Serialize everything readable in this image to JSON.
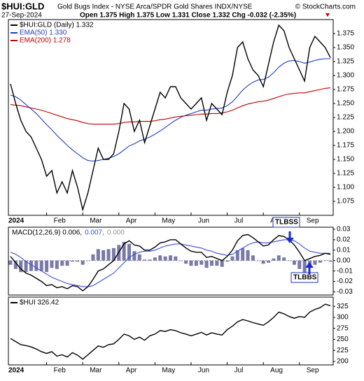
{
  "chart_data": [
    {
      "type": "line",
      "title": "$HUI:GLD",
      "subtitle": "Gold Bugs Index - NYSE Arca/SPDR Gold Shares INDX/NYSE",
      "source": "© StockCharts.com",
      "date": "27-Sep-2024",
      "quote": "Open 1.375 High 1.375 Low 1.331 Close 1.332 Chg -0.032 (-2.35%)",
      "categories": [
        "2024",
        null,
        null,
        null,
        null,
        null,
        null,
        "Feb",
        null,
        null,
        null,
        null,
        null,
        null,
        "Mar",
        null,
        null,
        null,
        null,
        null,
        null,
        "Apr",
        null,
        null,
        null,
        null,
        null,
        null,
        "May",
        null,
        null,
        null,
        null,
        null,
        null,
        "Jun",
        null,
        null,
        null,
        null,
        null,
        null,
        "Jul",
        null,
        null,
        null,
        null,
        null,
        null,
        "Aug",
        null,
        null,
        null,
        null,
        null,
        null,
        "Sep",
        null,
        null,
        null,
        null,
        null,
        null
      ],
      "ylim": [
        1.05,
        1.4
      ],
      "yticks": [
        1.075,
        {
          "value": 1.1,
          "label": "1.100"
        },
        1.125,
        {
          "value": 1.15,
          "label": "1.150"
        },
        1.175,
        {
          "value": 1.2,
          "label": "1.200"
        },
        1.225,
        {
          "value": 1.25,
          "label": "1.250"
        },
        1.275,
        {
          "value": 1.3,
          "label": "1.300"
        },
        1.325,
        {
          "value": 1.35,
          "label": "1.350"
        },
        1.375
      ],
      "series": [
        {
          "name": "$HUI:GLD (Daily) 1.332",
          "color": "#000000",
          "values": [
            1.285,
            1.25,
            1.22,
            1.2,
            1.19,
            1.17,
            1.15,
            1.12,
            1.13,
            1.09,
            1.11,
            1.09,
            1.13,
            1.1,
            1.06,
            1.09,
            1.13,
            1.17,
            1.15,
            1.15,
            1.16,
            1.2,
            1.25,
            1.24,
            1.2,
            1.22,
            1.18,
            1.21,
            1.24,
            1.27,
            1.26,
            1.28,
            1.28,
            1.26,
            1.25,
            1.24,
            1.25,
            1.26,
            1.22,
            1.25,
            1.24,
            1.23,
            1.27,
            1.3,
            1.35,
            1.36,
            1.33,
            1.31,
            1.3,
            1.28,
            1.32,
            1.36,
            1.39,
            1.38,
            1.35,
            1.33,
            1.31,
            1.29,
            1.35,
            1.37,
            1.36,
            1.35,
            1.332
          ]
        },
        {
          "name": "EMA(50) 1.330",
          "color": "#1f3fbf",
          "values": [
            1.265,
            1.262,
            1.256,
            1.248,
            1.24,
            1.232,
            1.222,
            1.212,
            1.203,
            1.193,
            1.184,
            1.175,
            1.167,
            1.16,
            1.153,
            1.148,
            1.147,
            1.148,
            1.15,
            1.152,
            1.155,
            1.16,
            1.167,
            1.174,
            1.178,
            1.183,
            1.186,
            1.19,
            1.195,
            1.201,
            1.207,
            1.214,
            1.22,
            1.225,
            1.229,
            1.232,
            1.235,
            1.238,
            1.238,
            1.24,
            1.241,
            1.242,
            1.246,
            1.253,
            1.263,
            1.274,
            1.282,
            1.288,
            1.292,
            1.293,
            1.297,
            1.305,
            1.315,
            1.322,
            1.326,
            1.327,
            1.325,
            1.322,
            1.324,
            1.327,
            1.329,
            1.33,
            1.33
          ]
        },
        {
          "name": "EMA(200) 1.278",
          "color": "#c00000",
          "values": [
            1.248,
            1.247,
            1.246,
            1.244,
            1.242,
            1.24,
            1.238,
            1.235,
            1.232,
            1.229,
            1.226,
            1.223,
            1.221,
            1.219,
            1.216,
            1.214,
            1.213,
            1.213,
            1.213,
            1.213,
            1.213,
            1.214,
            1.216,
            1.217,
            1.217,
            1.218,
            1.218,
            1.218,
            1.219,
            1.221,
            1.222,
            1.224,
            1.226,
            1.227,
            1.228,
            1.229,
            1.23,
            1.231,
            1.231,
            1.232,
            1.232,
            1.233,
            1.235,
            1.238,
            1.242,
            1.246,
            1.249,
            1.251,
            1.253,
            1.254,
            1.256,
            1.259,
            1.262,
            1.265,
            1.267,
            1.268,
            1.269,
            1.269,
            1.271,
            1.273,
            1.275,
            1.277,
            1.278
          ]
        }
      ]
    },
    {
      "type": "line",
      "ylim": [
        -0.033,
        0.032
      ],
      "yticks": [
        0.03,
        0.02,
        0.01,
        {
          "value": 0,
          "label": "0.00"
        },
        -0.01,
        -0.02,
        -0.03
      ],
      "annotations": [
        "TLBSS",
        "TLBBS"
      ],
      "series": [
        {
          "name": "MACD(12,26,9) 0.006,",
          "color": "#000000",
          "values": [
            0.004,
            -0.002,
            -0.008,
            -0.012,
            -0.014,
            -0.017,
            -0.02,
            -0.024,
            -0.023,
            -0.026,
            -0.025,
            -0.027,
            -0.024,
            -0.025,
            -0.029,
            -0.025,
            -0.018,
            -0.01,
            -0.008,
            -0.004,
            0.0,
            0.008,
            0.016,
            0.019,
            0.015,
            0.014,
            0.01,
            0.01,
            0.013,
            0.017,
            0.018,
            0.02,
            0.02,
            0.016,
            0.012,
            0.009,
            0.008,
            0.008,
            0.003,
            0.004,
            0.002,
            0.0,
            0.004,
            0.01,
            0.019,
            0.024,
            0.025,
            0.022,
            0.018,
            0.014,
            0.015,
            0.02,
            0.024,
            0.023,
            0.02,
            0.015,
            0.008,
            0.0,
            0.002,
            0.004,
            0.005,
            0.007,
            0.006
          ]
        },
        {
          "name": "0.007,",
          "color": "#3a50d8",
          "values": [
            0.008,
            0.006,
            0.003,
            -0.001,
            -0.004,
            -0.007,
            -0.01,
            -0.013,
            -0.016,
            -0.018,
            -0.02,
            -0.022,
            -0.023,
            -0.024,
            -0.025,
            -0.025,
            -0.024,
            -0.021,
            -0.018,
            -0.015,
            -0.012,
            -0.007,
            -0.002,
            0.003,
            0.006,
            0.008,
            0.009,
            0.009,
            0.01,
            0.012,
            0.014,
            0.015,
            0.016,
            0.016,
            0.015,
            0.014,
            0.013,
            0.012,
            0.01,
            0.009,
            0.007,
            0.006,
            0.005,
            0.006,
            0.009,
            0.012,
            0.015,
            0.017,
            0.018,
            0.017,
            0.017,
            0.018,
            0.019,
            0.02,
            0.02,
            0.019,
            0.016,
            0.012,
            0.009,
            0.008,
            0.007,
            0.007,
            0.007
          ]
        },
        {
          "name": "0.000",
          "type": "bar",
          "color": "#7a7aa8",
          "values": [
            -0.004,
            -0.008,
            -0.011,
            -0.011,
            -0.01,
            -0.01,
            -0.01,
            -0.011,
            -0.007,
            -0.008,
            -0.005,
            -0.005,
            -0.001,
            -0.001,
            -0.004,
            0.0,
            0.006,
            0.011,
            0.01,
            0.011,
            0.012,
            0.015,
            0.018,
            0.016,
            0.009,
            0.006,
            0.001,
            0.001,
            0.003,
            0.005,
            0.004,
            0.005,
            0.004,
            0.0,
            -0.003,
            -0.005,
            -0.005,
            -0.004,
            -0.007,
            -0.005,
            -0.005,
            -0.006,
            -0.001,
            0.004,
            0.01,
            0.012,
            0.01,
            0.005,
            0.0,
            -0.003,
            -0.002,
            0.002,
            0.005,
            0.003,
            0.0,
            -0.004,
            -0.008,
            -0.012,
            -0.007,
            -0.004,
            -0.002,
            0.0,
            -0.001
          ]
        }
      ]
    },
    {
      "type": "line",
      "ylim": [
        192,
        346
      ],
      "categories": [
        "2024",
        null,
        null,
        null,
        null,
        null,
        null,
        "Feb",
        null,
        null,
        null,
        null,
        null,
        null,
        "Mar",
        null,
        null,
        null,
        null,
        null,
        null,
        "Apr",
        null,
        null,
        null,
        null,
        null,
        null,
        "May",
        null,
        null,
        null,
        null,
        null,
        null,
        "Jun",
        null,
        null,
        null,
        null,
        null,
        null,
        "Jul",
        null,
        null,
        null,
        null,
        null,
        null,
        "Aug",
        null,
        null,
        null,
        null,
        null,
        null,
        "Sep",
        null,
        null,
        null,
        null,
        null,
        null
      ],
      "yticks": [
        200,
        225,
        250,
        275,
        300,
        325
      ],
      "series": [
        {
          "name": "$HUI 326.42",
          "color": "#000000",
          "values": [
            252,
            245,
            238,
            236,
            233,
            228,
            222,
            218,
            222,
            212,
            215,
            210,
            220,
            214,
            205,
            215,
            225,
            235,
            232,
            238,
            240,
            250,
            262,
            258,
            250,
            255,
            248,
            258,
            262,
            270,
            268,
            272,
            270,
            265,
            262,
            258,
            262,
            266,
            260,
            265,
            262,
            260,
            272,
            280,
            290,
            295,
            292,
            288,
            285,
            282,
            290,
            300,
            312,
            308,
            302,
            298,
            302,
            300,
            312,
            318,
            322,
            330,
            326.42
          ]
        }
      ]
    }
  ]
}
